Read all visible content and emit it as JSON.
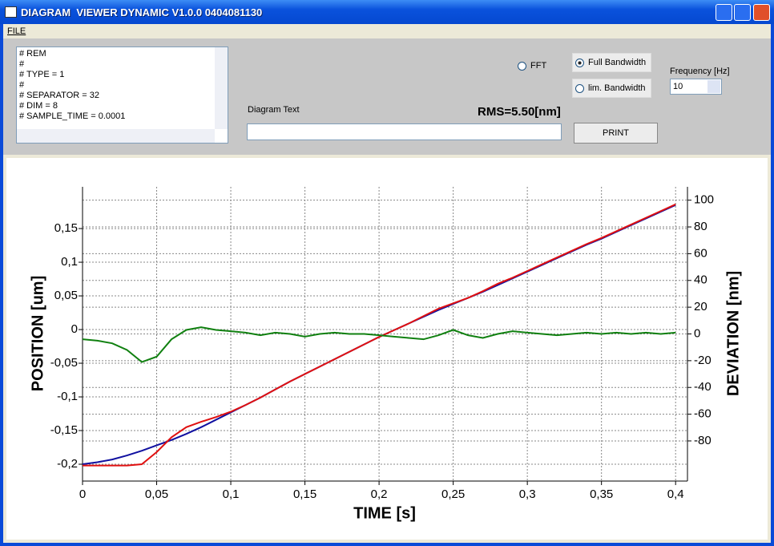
{
  "window": {
    "title": "DIAGRAM  VIEWER DYNAMIC V1.0.0 0404081130",
    "menu": [
      "FILE"
    ],
    "header_lines": [
      "# REM",
      "#",
      "# TYPE = 1",
      "#",
      "# SEPARATOR = 32",
      "# DIM = 8",
      "# SAMPLE_TIME = 0.0001"
    ],
    "diagram_text_label": "Diagram Text",
    "rms": "RMS=5.50[nm]",
    "options": [
      "FFT",
      "Full Bandwidth",
      "lim. Bandwidth"
    ],
    "frequency_label": "Frequency [Hz]",
    "frequency_value": "10",
    "print_button": "PRINT"
  },
  "chart_data": {
    "type": "line",
    "xlabel": "TIME [s]",
    "ylabel": "POSITION [um]",
    "y2label": "DEVIATION [nm]",
    "grid": true,
    "xlim": [
      0,
      0.408
    ],
    "xticks": [
      0,
      {
        "value": 0.05,
        "label": "0,05"
      },
      {
        "value": 0.1,
        "label": "0,1"
      },
      {
        "value": 0.15,
        "label": "0,15"
      },
      {
        "value": 0.2,
        "label": "0,2"
      },
      {
        "value": 0.25,
        "label": "0,25"
      },
      {
        "value": 0.3,
        "label": "0,3"
      },
      {
        "value": 0.35,
        "label": "0,35"
      },
      {
        "value": 0.4,
        "label": "0,4"
      }
    ],
    "ylim": [
      -0.225,
      0.212
    ],
    "yticks": [
      {
        "value": 0.15,
        "label": "0,15"
      },
      {
        "value": 0.1,
        "label": "0,1"
      },
      {
        "value": 0.05,
        "label": "0,05"
      },
      0,
      {
        "value": -0.05,
        "label": "-0,05"
      },
      {
        "value": -0.1,
        "label": "-0,1"
      },
      {
        "value": -0.15,
        "label": "-0,15"
      },
      {
        "value": -0.2,
        "label": "-0,2"
      }
    ],
    "y2lim": [
      -110,
      110
    ],
    "y2ticks": [
      100,
      80,
      60,
      40,
      20,
      0,
      -20,
      -40,
      -60,
      -80
    ],
    "x": [
      0,
      0.01,
      0.02,
      0.03,
      0.04,
      0.05,
      0.06,
      0.07,
      0.08,
      0.09,
      0.1,
      0.11,
      0.12,
      0.13,
      0.14,
      0.15,
      0.16,
      0.17,
      0.18,
      0.19,
      0.2,
      0.21,
      0.22,
      0.23,
      0.24,
      0.25,
      0.26,
      0.27,
      0.28,
      0.29,
      0.3,
      0.31,
      0.32,
      0.33,
      0.34,
      0.35,
      0.36,
      0.37,
      0.38,
      0.39,
      0.4
    ],
    "series": [
      {
        "color": "#1010a0",
        "values": [
          -0.2,
          -0.197,
          -0.193,
          -0.187,
          -0.18,
          -0.172,
          -0.164,
          -0.155,
          -0.145,
          -0.134,
          -0.123,
          -0.112,
          -0.101,
          -0.089,
          -0.077,
          -0.066,
          -0.055,
          -0.044,
          -0.033,
          -0.022,
          -0.011,
          -0.001,
          0.009,
          0.019,
          0.029,
          0.038,
          0.047,
          0.056,
          0.066,
          0.076,
          0.086,
          0.096,
          0.106,
          0.116,
          0.126,
          0.135,
          0.145,
          0.155,
          0.165,
          0.175,
          0.185
        ]
      },
      {
        "color": "#e01010",
        "values": [
          -0.202,
          -0.202,
          -0.202,
          -0.202,
          -0.2,
          -0.182,
          -0.16,
          -0.145,
          -0.137,
          -0.13,
          -0.122,
          -0.112,
          -0.101,
          -0.089,
          -0.077,
          -0.066,
          -0.055,
          -0.044,
          -0.033,
          -0.022,
          -0.011,
          -0.001,
          0.009,
          0.02,
          0.031,
          0.039,
          0.047,
          0.057,
          0.068,
          0.077,
          0.087,
          0.097,
          0.107,
          0.117,
          0.127,
          0.136,
          0.146,
          0.156,
          0.166,
          0.176,
          0.186
        ]
      },
      {
        "color": "#108010",
        "axis": "y2",
        "values": [
          -4,
          -5,
          -7,
          -12,
          -21,
          -17,
          -4,
          3,
          5,
          3,
          2,
          1,
          -1,
          1,
          0,
          -2,
          0,
          1,
          0,
          0,
          -1,
          -2,
          -3,
          -4,
          -1,
          3,
          -1,
          -3,
          0,
          2,
          1,
          0,
          -1,
          0,
          1,
          0,
          1,
          0,
          1,
          0,
          1
        ]
      }
    ]
  }
}
